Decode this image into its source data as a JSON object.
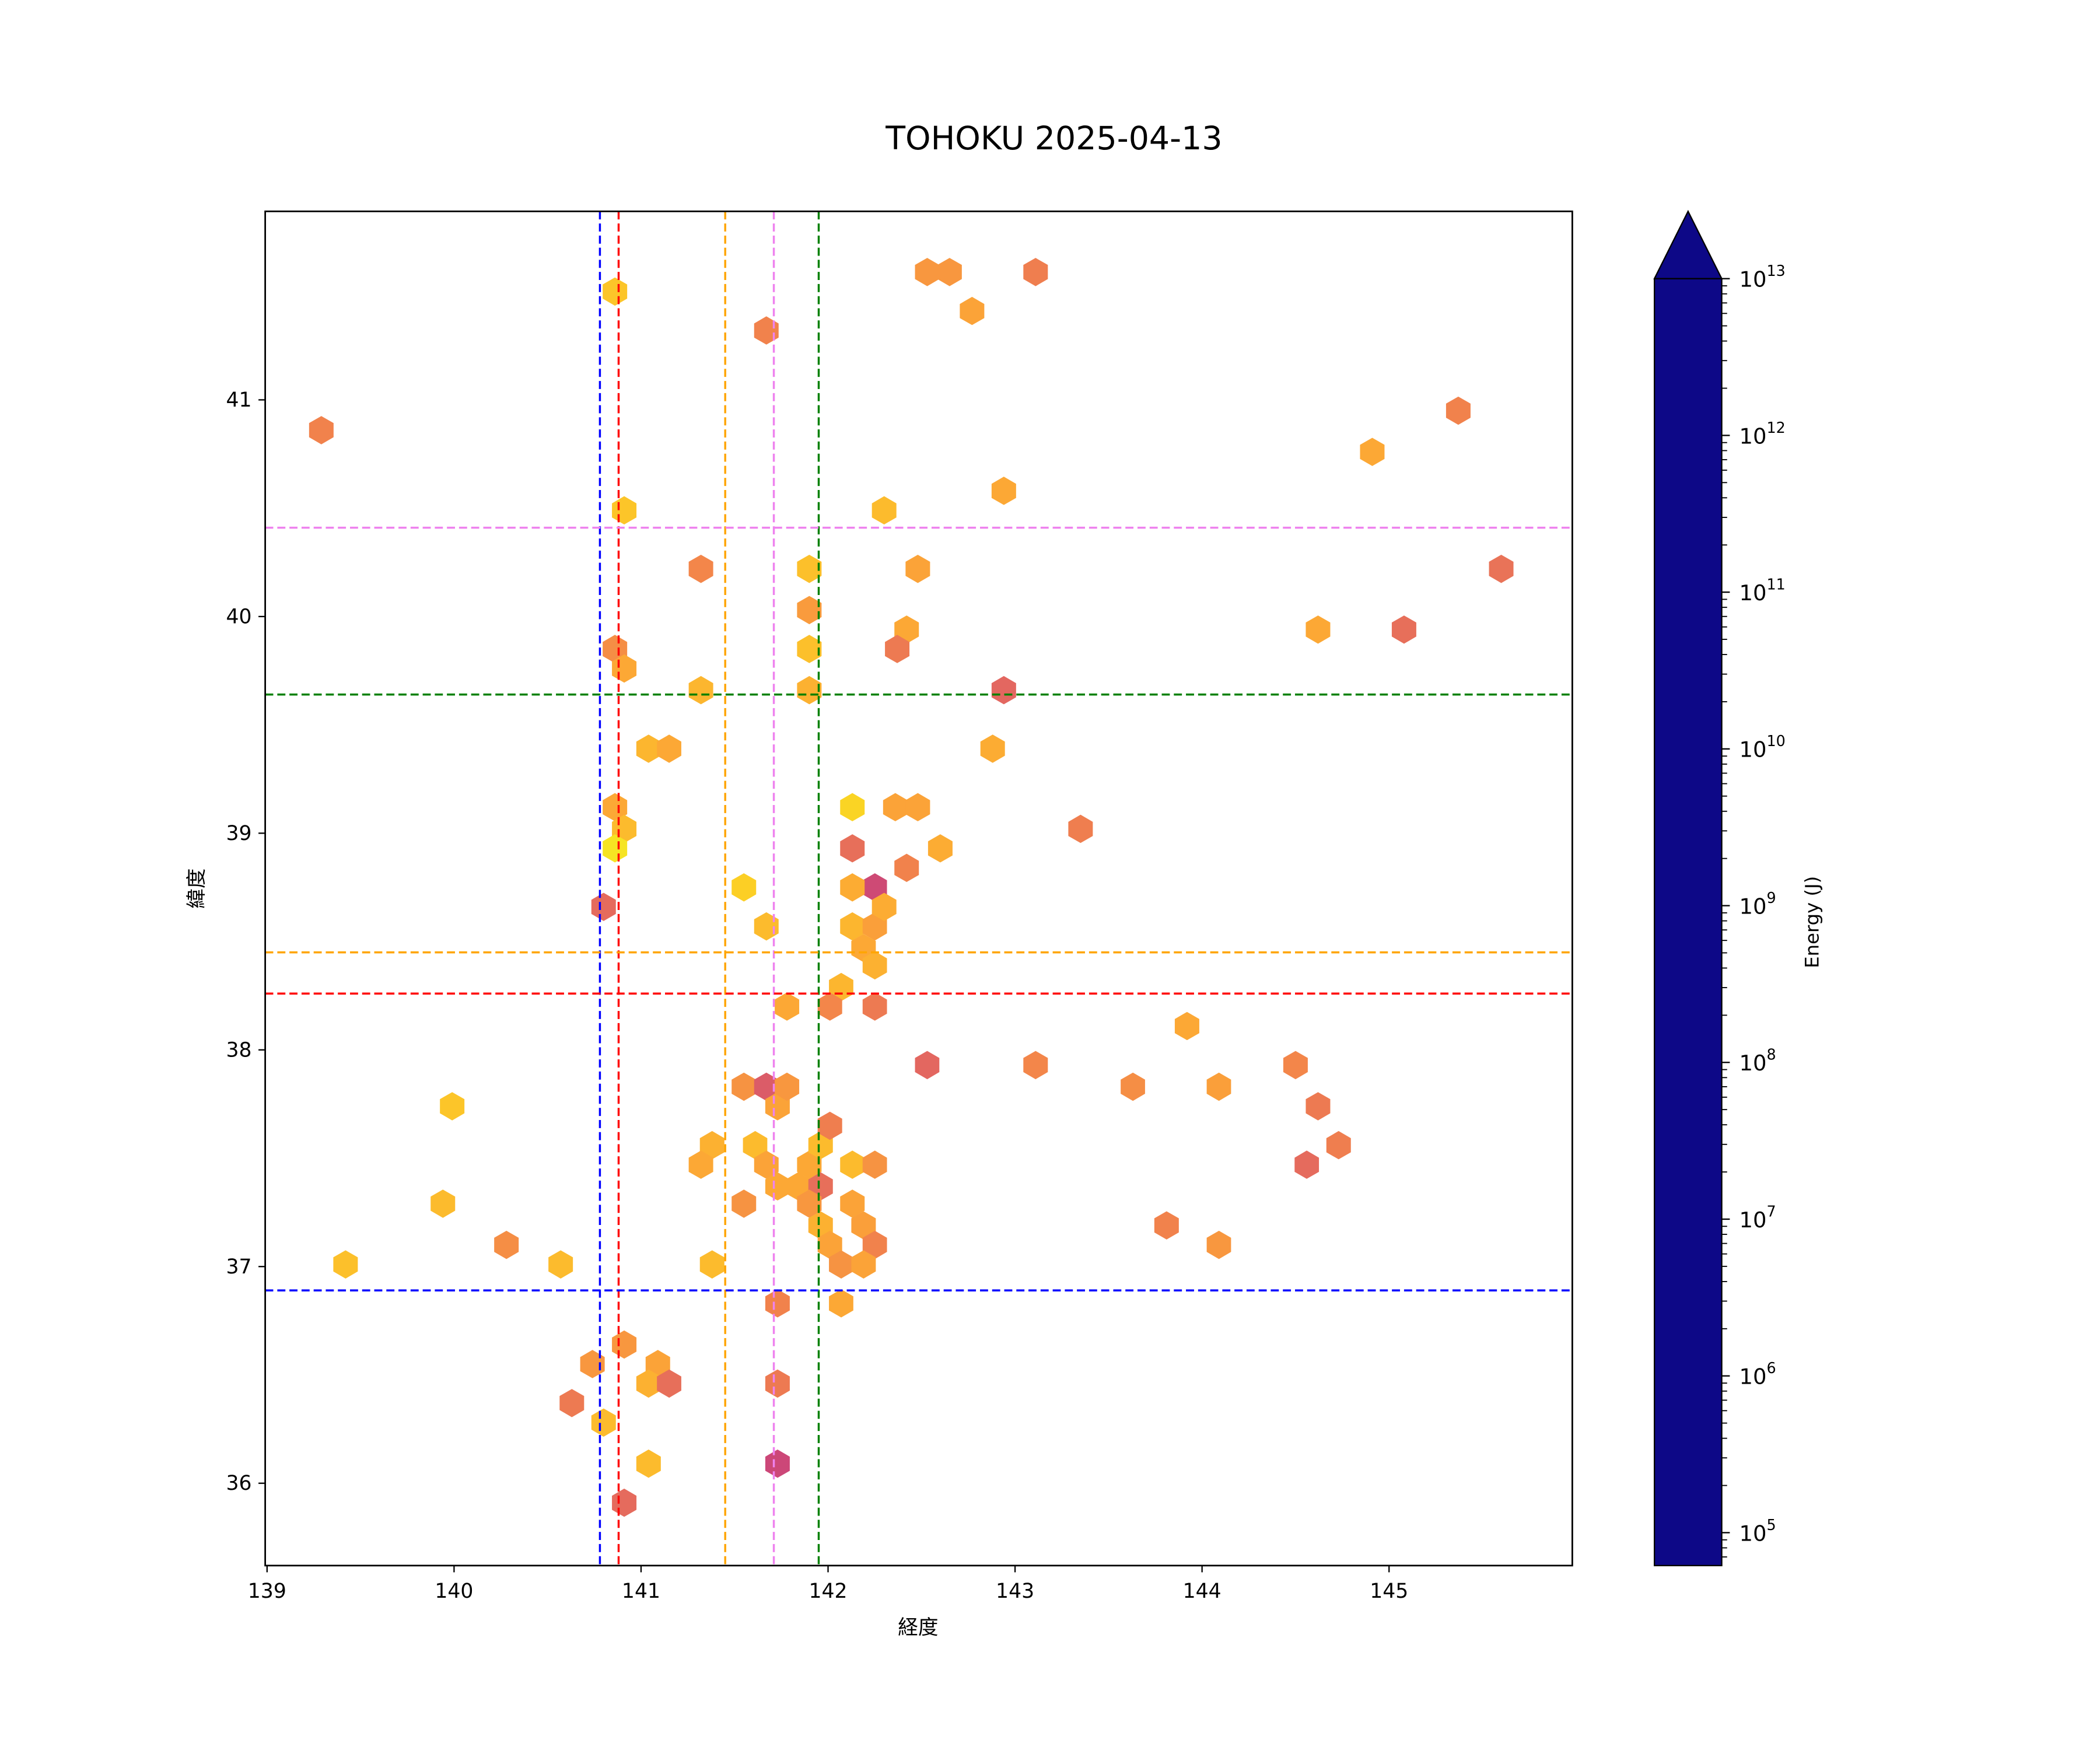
{
  "chart_data": {
    "type": "hexbin",
    "title": "TOHOKU 2025-04-13",
    "xlabel": "経度",
    "ylabel": "緯度",
    "xlim": [
      138.99,
      145.98
    ],
    "ylim": [
      35.62,
      41.87
    ],
    "xticks": [
      139,
      140,
      141,
      142,
      143,
      144,
      145
    ],
    "yticks": [
      36,
      37,
      38,
      39,
      40,
      41
    ],
    "grid": false,
    "colorbar": {
      "label": "Energy (J)",
      "scale": "log",
      "colormap": "plasma",
      "log10_range": [
        4.79,
        13
      ],
      "extend": "max",
      "tick_exponents": [
        5,
        6,
        7,
        8,
        9,
        10,
        11,
        12,
        13
      ],
      "tick_base": "10"
    },
    "vlines": [
      {
        "x": 140.78,
        "color": "#0000ff"
      },
      {
        "x": 140.88,
        "color": "#ff0000"
      },
      {
        "x": 141.45,
        "color": "#ffa500"
      },
      {
        "x": 141.71,
        "color": "#ee82ee"
      },
      {
        "x": 141.95,
        "color": "#008000"
      }
    ],
    "hlines": [
      {
        "y": 40.41,
        "color": "#ee82ee"
      },
      {
        "y": 39.64,
        "color": "#008000"
      },
      {
        "y": 38.45,
        "color": "#ffa500"
      },
      {
        "y": 38.26,
        "color": "#ff0000"
      },
      {
        "y": 36.89,
        "color": "#0000ff"
      }
    ],
    "points_columns": [
      "lon",
      "lat",
      "log10_energy"
    ],
    "points": [
      [
        139.29,
        40.86,
        7.3
      ],
      [
        140.86,
        41.5,
        5.8
      ],
      [
        141.67,
        41.32,
        7.3
      ],
      [
        142.53,
        41.59,
        6.8
      ],
      [
        142.65,
        41.59,
        6.8
      ],
      [
        142.77,
        41.41,
        6.5
      ],
      [
        143.11,
        41.59,
        7.4
      ],
      [
        140.91,
        40.49,
        5.8
      ],
      [
        142.3,
        40.49,
        6.0
      ],
      [
        142.94,
        40.58,
        6.4
      ],
      [
        141.32,
        40.22,
        7.2
      ],
      [
        141.9,
        40.22,
        5.9
      ],
      [
        142.48,
        40.22,
        6.5
      ],
      [
        141.9,
        40.03,
        6.7
      ],
      [
        142.42,
        39.94,
        6.4
      ],
      [
        142.37,
        39.85,
        7.5
      ],
      [
        140.86,
        39.85,
        7.0
      ],
      [
        140.91,
        39.76,
        6.4
      ],
      [
        141.9,
        39.85,
        5.9
      ],
      [
        141.32,
        39.66,
        6.1
      ],
      [
        141.9,
        39.66,
        6.2
      ],
      [
        142.94,
        39.66,
        8.0
      ],
      [
        141.04,
        39.39,
        6.1
      ],
      [
        141.15,
        39.39,
        6.4
      ],
      [
        142.88,
        39.39,
        6.3
      ],
      [
        140.86,
        39.12,
        6.4
      ],
      [
        140.91,
        39.02,
        6.0
      ],
      [
        140.86,
        38.93,
        5.2
      ],
      [
        142.13,
        39.12,
        5.5
      ],
      [
        142.36,
        39.12,
        6.5
      ],
      [
        142.48,
        39.12,
        6.5
      ],
      [
        142.6,
        38.93,
        6.3
      ],
      [
        142.13,
        38.93,
        7.8
      ],
      [
        143.35,
        39.02,
        7.4
      ],
      [
        140.8,
        38.66,
        7.9
      ],
      [
        141.55,
        38.75,
        5.6
      ],
      [
        141.67,
        38.57,
        6.0
      ],
      [
        142.25,
        38.75,
        8.8
      ],
      [
        142.42,
        38.84,
        7.3
      ],
      [
        142.13,
        38.75,
        6.3
      ],
      [
        142.13,
        38.57,
        6.1
      ],
      [
        142.25,
        38.57,
        6.6
      ],
      [
        142.19,
        38.47,
        6.4
      ],
      [
        142.3,
        38.66,
        6.3
      ],
      [
        142.25,
        38.39,
        6.2
      ],
      [
        142.07,
        38.29,
        6.1
      ],
      [
        141.78,
        38.2,
        6.4
      ],
      [
        142.01,
        38.2,
        7.2
      ],
      [
        142.25,
        38.2,
        7.5
      ],
      [
        142.53,
        37.93,
        8.0
      ],
      [
        143.11,
        37.93,
        7.2
      ],
      [
        143.92,
        38.11,
        6.4
      ],
      [
        143.63,
        37.83,
        7.0
      ],
      [
        144.09,
        37.83,
        6.6
      ],
      [
        144.5,
        37.93,
        7.2
      ],
      [
        144.62,
        37.74,
        7.5
      ],
      [
        144.56,
        37.47,
        7.9
      ],
      [
        144.73,
        37.56,
        7.4
      ],
      [
        143.81,
        37.19,
        7.3
      ],
      [
        144.09,
        37.1,
        6.8
      ],
      [
        139.99,
        37.74,
        5.8
      ],
      [
        139.94,
        37.29,
        6.0
      ],
      [
        139.42,
        37.01,
        5.9
      ],
      [
        140.28,
        37.1,
        7.0
      ],
      [
        140.57,
        37.01,
        6.0
      ],
      [
        141.55,
        37.83,
        6.9
      ],
      [
        141.67,
        37.83,
        8.3
      ],
      [
        141.73,
        37.74,
        6.5
      ],
      [
        141.78,
        37.83,
        6.8
      ],
      [
        141.38,
        37.56,
        6.2
      ],
      [
        141.32,
        37.47,
        6.4
      ],
      [
        141.61,
        37.56,
        6.0
      ],
      [
        141.67,
        37.47,
        6.5
      ],
      [
        141.73,
        37.37,
        6.4
      ],
      [
        141.84,
        37.37,
        6.4
      ],
      [
        141.9,
        37.47,
        6.4
      ],
      [
        141.96,
        37.56,
        6.0
      ],
      [
        142.01,
        37.65,
        7.4
      ],
      [
        141.96,
        37.37,
        7.8
      ],
      [
        141.9,
        37.29,
        6.8
      ],
      [
        141.96,
        37.19,
        6.2
      ],
      [
        142.13,
        37.47,
        6.0
      ],
      [
        142.25,
        37.47,
        6.9
      ],
      [
        142.13,
        37.29,
        6.5
      ],
      [
        142.19,
        37.19,
        6.6
      ],
      [
        142.01,
        37.1,
        6.5
      ],
      [
        142.25,
        37.1,
        7.3
      ],
      [
        142.07,
        37.01,
        6.9
      ],
      [
        142.19,
        37.01,
        6.5
      ],
      [
        141.55,
        37.29,
        6.9
      ],
      [
        141.38,
        37.01,
        6.0
      ],
      [
        141.73,
        36.83,
        7.3
      ],
      [
        142.07,
        36.83,
        6.4
      ],
      [
        140.91,
        36.64,
        6.8
      ],
      [
        140.74,
        36.55,
        6.8
      ],
      [
        141.09,
        36.55,
        6.5
      ],
      [
        141.04,
        36.46,
        6.2
      ],
      [
        141.15,
        36.46,
        7.8
      ],
      [
        141.73,
        36.46,
        7.5
      ],
      [
        140.63,
        36.37,
        7.5
      ],
      [
        140.8,
        36.28,
        6.0
      ],
      [
        141.04,
        36.09,
        6.0
      ],
      [
        141.73,
        36.09,
        8.9
      ],
      [
        140.91,
        35.91,
        7.9
      ],
      [
        144.62,
        39.94,
        6.4
      ],
      [
        145.08,
        39.94,
        7.8
      ],
      [
        144.91,
        40.76,
        6.4
      ],
      [
        145.37,
        40.95,
        7.3
      ],
      [
        145.6,
        40.22,
        7.7
      ]
    ]
  }
}
